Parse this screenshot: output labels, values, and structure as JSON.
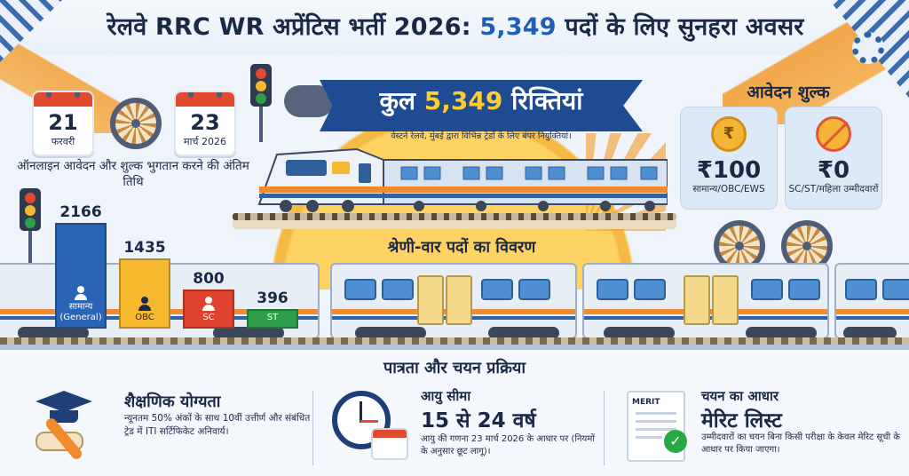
{
  "header": {
    "title_part1": "रेलवे RRC WR अप्रेंटिस भर्ती 2026: ",
    "title_highlight": "5,349",
    "title_part2": " पदों के लिए सुनहरा अवसर"
  },
  "dates": {
    "start": {
      "day": "21",
      "month": "फरवरी"
    },
    "end": {
      "day": "23",
      "month": "मार्च 2026"
    },
    "caption": "ऑनलाइन आवेदन और शुल्क भुगतान करने की अंतिम तिथि"
  },
  "hero": {
    "title_prefix": "कुल ",
    "title_number": "5,349",
    "title_suffix": " रिक्तियां",
    "subtitle": "वेस्टर्न रेलवे, मुंबई द्वारा विभिन्न ट्रेडों के लिए बंपर नियुक्तियां।"
  },
  "fee": {
    "title": "आवेदन शुल्क",
    "cards": [
      {
        "icon": "rupee-coin-icon",
        "coin_symbol": "₹",
        "amount": "₹100",
        "category": "सामान्य/OBC/EWS"
      },
      {
        "icon": "no-fee-coin-icon",
        "amount": "₹0",
        "category": "SC/ST/महिला उम्मीदवारों"
      }
    ]
  },
  "categories": {
    "heading": "श्रेणी-वार पदों का विवरण"
  },
  "chart_data": {
    "type": "bar",
    "title": "श्रेणी-वार पदों का विवरण",
    "categories": [
      "सामान्य (General)",
      "OBC",
      "SC",
      "ST"
    ],
    "values": [
      2166,
      1435,
      800,
      396
    ],
    "colors": [
      "#2a64b4",
      "#f5b82e",
      "#e0422e",
      "#2f9e48"
    ],
    "ylim": [
      0,
      2300
    ]
  },
  "eligibility": {
    "heading": "पात्रता और चयन प्रक्रिया",
    "education": {
      "title": "शैक्षणिक योग्यता",
      "text": "न्यूनतम 50% अंकों के साथ 10वीं उत्तीर्ण और संबंधित ट्रेड में ITI सर्टिफिकेट अनिवार्य।"
    },
    "age": {
      "title": "आयु सीमा",
      "value": "15 से 24 वर्ष",
      "text": "आयु की गणना 23 मार्च 2026 के आधार पर (नियमों के अनुसार छूट लागू)।"
    },
    "selection": {
      "title": "चयन का आधार",
      "value": "मेरिट लिस्ट",
      "doc_label": "MERIT",
      "text": "उम्मीदवारों का चयन बिना किसी परीक्षा के केवल मेरिट सूची के आधार पर किया जाएगा।"
    }
  }
}
